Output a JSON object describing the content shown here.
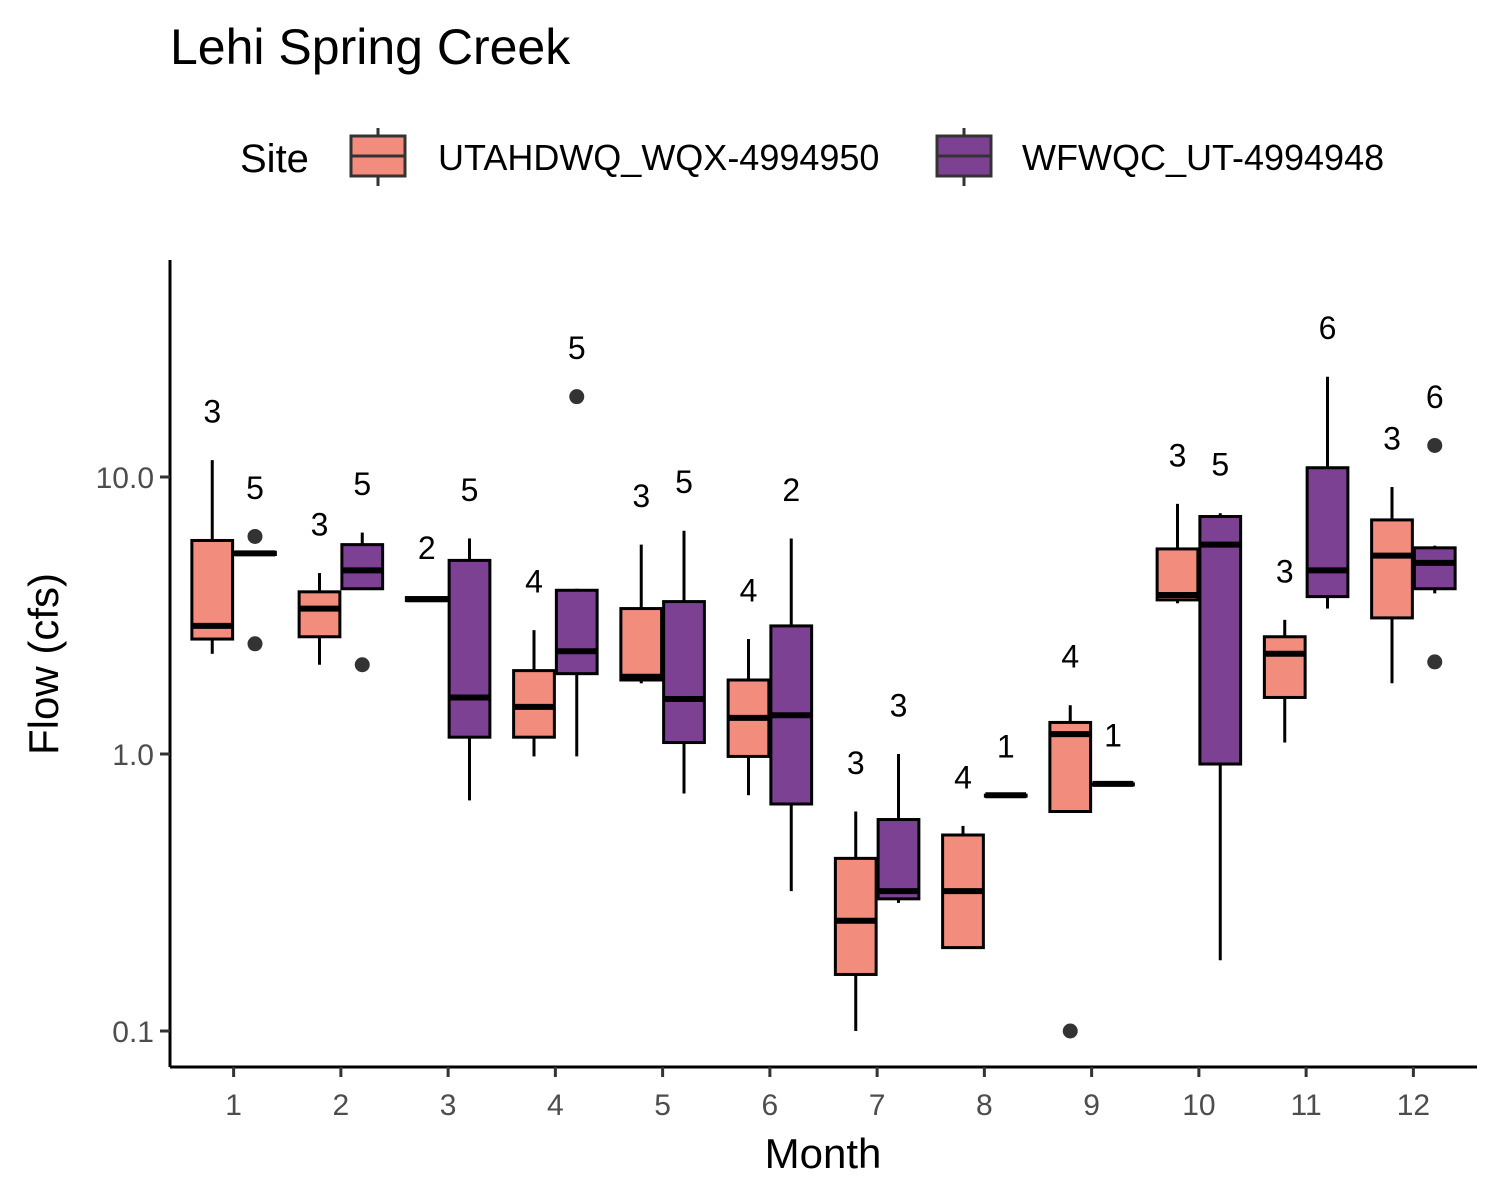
{
  "chart_data": {
    "type": "boxplot",
    "title": "Lehi Spring Creek",
    "xlabel": "Month",
    "ylabel": "Flow (cfs)",
    "y_scale": "log10",
    "ylim": [
      0.085,
      55
    ],
    "y_ticks": [
      {
        "value": 0.1,
        "label": "0.1"
      },
      {
        "value": 1.0,
        "label": "1.0"
      },
      {
        "value": 10.0,
        "label": "10.0"
      }
    ],
    "categories": [
      "1",
      "2",
      "3",
      "4",
      "5",
      "6",
      "7",
      "8",
      "9",
      "10",
      "11",
      "12"
    ],
    "legend": {
      "title": "Site",
      "position": "top",
      "entries": [
        {
          "name": "UTAHDWQ_WQX-4994950",
          "color": "#F28C7D"
        },
        {
          "name": "WFWQC_UT-4994948",
          "color": "#7C4192"
        }
      ]
    },
    "grid": false,
    "series": [
      {
        "name": "UTAHDWQ_WQX-4994950",
        "color": "#F28C7D",
        "boxes": [
          {
            "month": "1",
            "n": "3",
            "min": 2.3,
            "q1": 2.6,
            "median": 2.9,
            "q3": 5.9,
            "max": 11.5,
            "outliers": []
          },
          {
            "month": "2",
            "n": "3",
            "min": 2.1,
            "q1": 2.65,
            "median": 3.35,
            "q3": 3.85,
            "max": 4.5,
            "outliers": []
          },
          {
            "month": "3",
            "n": "2",
            "min": 3.55,
            "q1": 3.58,
            "median": 3.62,
            "q3": 3.67,
            "max": 3.7,
            "outliers": []
          },
          {
            "month": "4",
            "n": "4",
            "min": 0.98,
            "q1": 1.15,
            "median": 1.48,
            "q3": 2.0,
            "max": 2.8,
            "outliers": []
          },
          {
            "month": "5",
            "n": "3",
            "min": 1.8,
            "q1": 1.85,
            "median": 1.9,
            "q3": 3.35,
            "max": 5.7,
            "outliers": []
          },
          {
            "month": "6",
            "n": "4",
            "min": 0.71,
            "q1": 0.98,
            "median": 1.35,
            "q3": 1.85,
            "max": 2.6,
            "outliers": []
          },
          {
            "month": "7",
            "n": "3",
            "min": 0.1,
            "q1": 0.16,
            "median": 0.25,
            "q3": 0.42,
            "max": 0.62,
            "outliers": []
          },
          {
            "month": "8",
            "n": "4",
            "min": 0.2,
            "q1": 0.2,
            "median": 0.32,
            "q3": 0.51,
            "max": 0.55,
            "outliers": []
          },
          {
            "month": "9",
            "n": "4",
            "min": 0.62,
            "q1": 0.62,
            "median": 1.18,
            "q3": 1.3,
            "max": 1.5,
            "outliers": [
              0.1
            ]
          },
          {
            "month": "10",
            "n": "3",
            "min": 3.5,
            "q1": 3.6,
            "median": 3.75,
            "q3": 5.5,
            "max": 8.0,
            "outliers": []
          },
          {
            "month": "11",
            "n": "3",
            "min": 1.1,
            "q1": 1.6,
            "median": 2.3,
            "q3": 2.65,
            "max": 3.05,
            "outliers": []
          },
          {
            "month": "12",
            "n": "3",
            "min": 1.8,
            "q1": 3.1,
            "median": 5.2,
            "q3": 7.0,
            "max": 9.2,
            "outliers": []
          }
        ]
      },
      {
        "name": "WFWQC_UT-4994948",
        "color": "#7C4192",
        "boxes": [
          {
            "month": "1",
            "n": "5",
            "min": 5.2,
            "q1": 5.25,
            "median": 5.3,
            "q3": 5.35,
            "max": 5.4,
            "outliers": [
              6.1,
              2.5
            ]
          },
          {
            "month": "2",
            "n": "5",
            "min": 3.95,
            "q1": 3.95,
            "median": 4.6,
            "q3": 5.7,
            "max": 6.3,
            "outliers": [
              2.1
            ]
          },
          {
            "month": "3",
            "n": "5",
            "min": 0.68,
            "q1": 1.15,
            "median": 1.6,
            "q3": 5.0,
            "max": 6.0,
            "outliers": []
          },
          {
            "month": "4",
            "n": "5",
            "min": 0.98,
            "q1": 1.95,
            "median": 2.35,
            "q3": 3.9,
            "max": 3.95,
            "outliers": [
              19.5
            ]
          },
          {
            "month": "5",
            "n": "5",
            "min": 0.72,
            "q1": 1.1,
            "median": 1.58,
            "q3": 3.55,
            "max": 6.4,
            "outliers": []
          },
          {
            "month": "6",
            "n": "2",
            "min": 0.32,
            "q1": 0.66,
            "median": 1.38,
            "q3": 2.9,
            "max": 6.0,
            "outliers": []
          },
          {
            "month": "7",
            "n": "3",
            "min": 0.29,
            "q1": 0.3,
            "median": 0.32,
            "q3": 0.58,
            "max": 1.0,
            "outliers": []
          },
          {
            "month": "8",
            "n": "1",
            "min": 0.71,
            "q1": 0.71,
            "median": 0.71,
            "q3": 0.71,
            "max": 0.71,
            "outliers": []
          },
          {
            "month": "9",
            "n": "1",
            "min": 0.78,
            "q1": 0.78,
            "median": 0.78,
            "q3": 0.78,
            "max": 0.78,
            "outliers": []
          },
          {
            "month": "10",
            "n": "5",
            "min": 0.18,
            "q1": 0.92,
            "median": 5.7,
            "q3": 7.2,
            "max": 7.4,
            "outliers": []
          },
          {
            "month": "11",
            "n": "6",
            "min": 3.35,
            "q1": 3.7,
            "median": 4.6,
            "q3": 10.8,
            "max": 23.0,
            "outliers": []
          },
          {
            "month": "12",
            "n": "6",
            "min": 3.8,
            "q1": 3.95,
            "median": 4.9,
            "q3": 5.55,
            "max": 5.65,
            "outliers": [
              13.0,
              2.15
            ]
          }
        ]
      }
    ]
  }
}
